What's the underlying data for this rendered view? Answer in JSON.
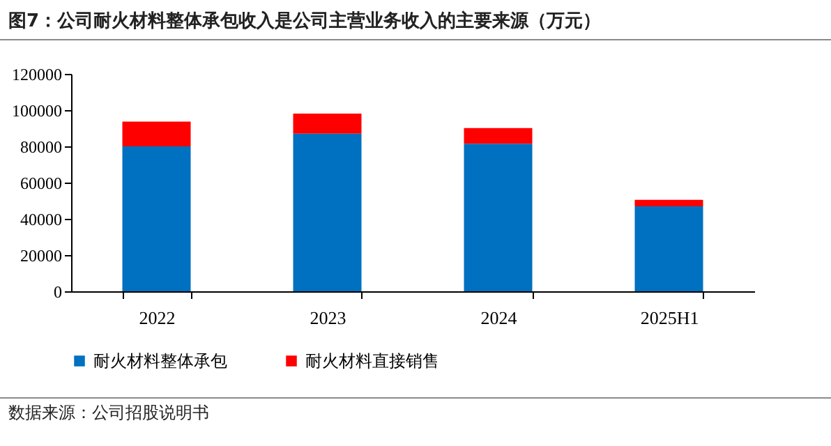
{
  "chart_data": {
    "type": "bar",
    "title": "图7：公司耐火材料整体承包收入是公司主营业务收入的主要来源（万元）",
    "categories": [
      "2022",
      "2023",
      "2024",
      "2025H1"
    ],
    "stacked": true,
    "series": [
      {
        "name": "耐火材料整体承包",
        "color": "#0070c0",
        "values": [
          80000,
          87000,
          81400,
          46900
        ]
      },
      {
        "name": "耐火材料直接销售",
        "color": "#ff0000",
        "values": [
          13700,
          11100,
          8700,
          3600
        ]
      }
    ],
    "ylim": [
      0,
      120000
    ],
    "yticks": [
      0,
      20000,
      40000,
      60000,
      80000,
      100000,
      120000
    ],
    "grid": false,
    "legend": "bottom",
    "annotations": [
      "数据来源：公司招股说明书"
    ]
  }
}
